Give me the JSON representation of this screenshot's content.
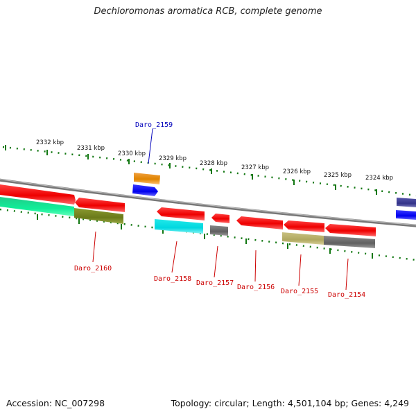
{
  "title": "Dechloromonas aromatica RCB, complete genome",
  "footer": {
    "accession": "Accession: NC_007298",
    "summary": "Topology: circular; Length: 4,501,104 bp; Genes: 4,249"
  },
  "colors": {
    "backbone": "#888888",
    "tick": "#117711",
    "forward_label": "#0000bb",
    "reverse_label": "#cc0000"
  },
  "scale_labels": [
    "2332 kbp",
    "2331 kbp",
    "2330 kbp",
    "2329 kbp",
    "2328 kbp",
    "2327 kbp",
    "2326 kbp",
    "2325 kbp",
    "2324 kbp"
  ],
  "gene_labels": [
    {
      "text": "Daro_2159",
      "strand": "forward"
    },
    {
      "text": "Daro_2160",
      "strand": "reverse"
    },
    {
      "text": "Daro_2158",
      "strand": "reverse"
    },
    {
      "text": "Daro_2157",
      "strand": "reverse"
    },
    {
      "text": "Daro_2156",
      "strand": "reverse"
    },
    {
      "text": "Daro_2155",
      "strand": "reverse"
    },
    {
      "text": "Daro_2154",
      "strand": "reverse"
    }
  ]
}
